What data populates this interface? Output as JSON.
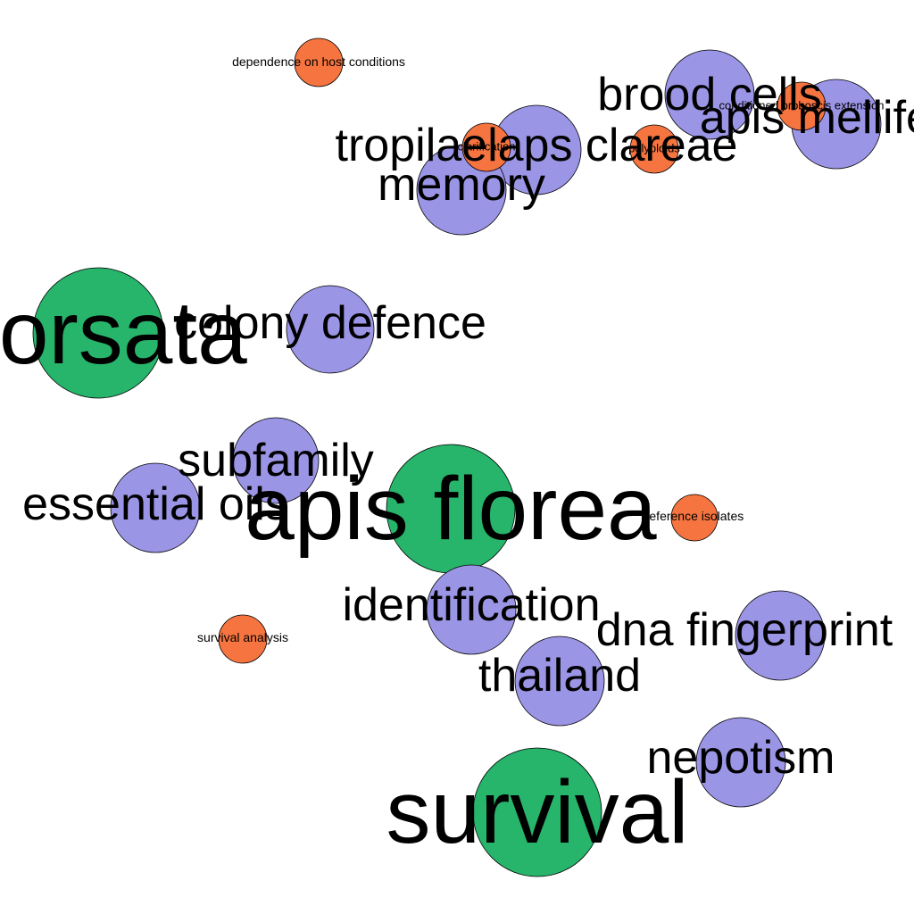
{
  "colors": {
    "green": "#27b46b",
    "purple": "#9b95e6",
    "orange": "#f5743f",
    "edge": "#000000",
    "text": "#000000"
  },
  "nodes": [
    {
      "id": "n-dorsata",
      "label": "dorsata",
      "group": "green",
      "importance": 3
    },
    {
      "id": "n-apis-florea",
      "label": "apis florea",
      "group": "green",
      "importance": 3
    },
    {
      "id": "n-survival",
      "label": "survival",
      "group": "green",
      "importance": 3
    },
    {
      "id": "n-brood-cells",
      "label": "brood cells",
      "group": "purple",
      "importance": 2
    },
    {
      "id": "n-apis-mellifera",
      "label": "apis mellifera",
      "group": "purple",
      "importance": 2
    },
    {
      "id": "n-tropilaelaps-clareae",
      "label": "tropilaelaps clareae",
      "group": "purple",
      "importance": 2
    },
    {
      "id": "n-memory",
      "label": "memory",
      "group": "purple",
      "importance": 2
    },
    {
      "id": "n-colony-defence",
      "label": "colony defence",
      "group": "purple",
      "importance": 2
    },
    {
      "id": "n-subfamily",
      "label": "subfamily",
      "group": "purple",
      "importance": 2
    },
    {
      "id": "n-essential-oils",
      "label": "essential oils",
      "group": "purple",
      "importance": 2
    },
    {
      "id": "n-identification",
      "label": "identification",
      "group": "purple",
      "importance": 2
    },
    {
      "id": "n-thailand",
      "label": "thailand",
      "group": "purple",
      "importance": 2
    },
    {
      "id": "n-dna-fingerprint",
      "label": "dna fingerprint",
      "group": "purple",
      "importance": 2
    },
    {
      "id": "n-nepotism",
      "label": "nepotism",
      "group": "purple",
      "importance": 2
    },
    {
      "id": "n-dependence-on-host-conditions",
      "label": "dependence on host conditions",
      "group": "orange",
      "importance": 1
    },
    {
      "id": "n-conditioned-proboscis-extension",
      "label": "conditioned proboscis extension",
      "group": "orange",
      "importance": 1
    },
    {
      "id": "n-polyploids",
      "label": "polyploids",
      "group": "orange",
      "importance": 1
    },
    {
      "id": "n-clarification",
      "label": "clarification",
      "group": "orange",
      "importance": 1
    },
    {
      "id": "n-reference-isolates",
      "label": "reference isolates",
      "group": "orange",
      "importance": 1
    },
    {
      "id": "n-survival-analysis",
      "label": "survival analysis",
      "group": "orange",
      "importance": 1
    }
  ]
}
